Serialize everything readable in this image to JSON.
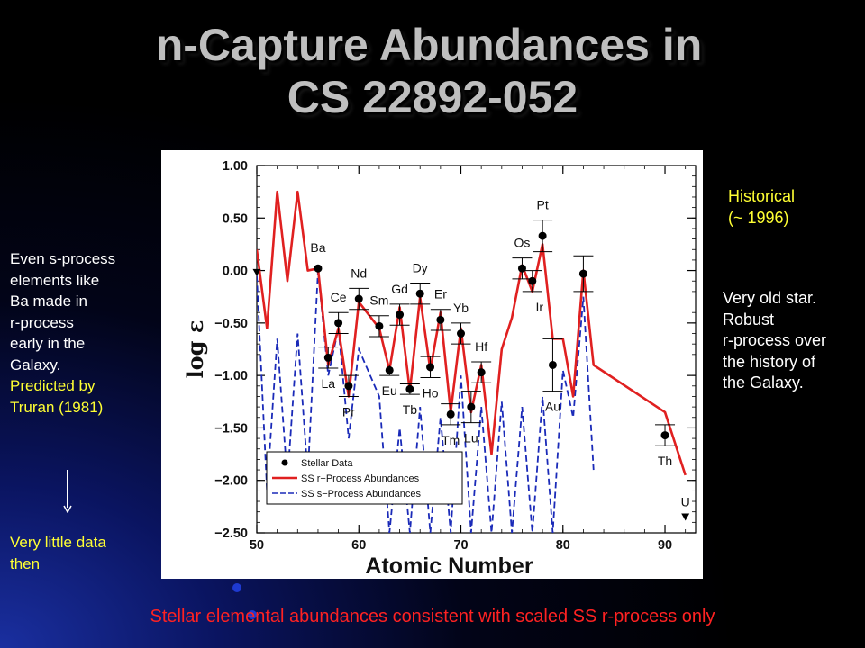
{
  "slide": {
    "title_line1": "n-Capture Abundances in",
    "title_line2": "CS 22892-052",
    "left_note": {
      "lines": [
        "Even s-process",
        "elements like",
        "Ba made in",
        "r-process",
        "early in the",
        "Galaxy."
      ],
      "predicted_lines": [
        "Predicted by",
        "Truran (1981)"
      ],
      "bottom_lines": [
        "Very little data",
        "then"
      ]
    },
    "right_note": {
      "historical_lines": [
        "Historical",
        "(~ 1996)"
      ],
      "lines": [
        "Very old star.",
        "Robust",
        "r-process over",
        "the history of",
        "the Galaxy."
      ]
    },
    "footer": "Stellar elemental abundances consistent with scaled SS r-process only"
  },
  "colors": {
    "r_process": "#e02020",
    "s_process": "#1a2ab8",
    "stellar": "#000000",
    "yellow_text": "#ffff33",
    "red_text": "#ff2222"
  },
  "chart_data": {
    "type": "line",
    "xlabel": "Atomic Number",
    "ylabel": "log ε",
    "xlim": [
      50,
      93
    ],
    "ylim": [
      -2.5,
      1.0
    ],
    "x_ticks": [
      50,
      60,
      70,
      80,
      90
    ],
    "y_ticks": [
      1.0,
      0.5,
      0.0,
      -0.5,
      -1.0,
      -1.5,
      -2.0,
      -2.5
    ],
    "x_tick_labels": [
      "50",
      "60",
      "70",
      "80",
      "90"
    ],
    "y_tick_labels": [
      "1.00",
      "0.50",
      "0.00",
      "−0.50",
      "−1.00",
      "−1.50",
      "−2.00",
      "−2.50"
    ],
    "legend": {
      "position": "bottom-left",
      "entries": [
        "Stellar Data",
        "SS r−Process Abundances",
        "SS s−Process Abundances"
      ]
    },
    "stellar_data": [
      {
        "z": 56,
        "label": "Ba",
        "y": 0.02,
        "err": 0
      },
      {
        "z": 57,
        "label": "La",
        "y": -0.83,
        "err": 0.1
      },
      {
        "z": 58,
        "label": "Ce",
        "y": -0.5,
        "err": 0.1
      },
      {
        "z": 59,
        "label": "Pr",
        "y": -1.1,
        "err": 0.1
      },
      {
        "z": 60,
        "label": "Nd",
        "y": -0.27,
        "err": 0.1
      },
      {
        "z": 62,
        "label": "Sm",
        "y": -0.53,
        "err": 0.1
      },
      {
        "z": 63,
        "label": "Eu",
        "y": -0.95,
        "err": 0.05
      },
      {
        "z": 64,
        "label": "Gd",
        "y": -0.42,
        "err": 0.1
      },
      {
        "z": 65,
        "label": "Tb",
        "y": -1.13,
        "err": 0.05
      },
      {
        "z": 66,
        "label": "Dy",
        "y": -0.22,
        "err": 0.1
      },
      {
        "z": 67,
        "label": "Ho",
        "y": -0.92,
        "err": 0.1
      },
      {
        "z": 68,
        "label": "Er",
        "y": -0.47,
        "err": 0.1
      },
      {
        "z": 69,
        "label": "Tm",
        "y": -1.37,
        "err": 0.1
      },
      {
        "z": 70,
        "label": "Yb",
        "y": -0.6,
        "err": 0.1
      },
      {
        "z": 71,
        "label": "Lu",
        "y": -1.3,
        "err": 0.15
      },
      {
        "z": 72,
        "label": "Hf",
        "y": -0.97,
        "err": 0.1
      },
      {
        "z": 76,
        "label": "Os",
        "y": 0.02,
        "err": 0.1
      },
      {
        "z": 77,
        "label": "Ir",
        "y": -0.1,
        "err": 0.1
      },
      {
        "z": 78,
        "label": "Pt",
        "y": 0.33,
        "err": 0.15
      },
      {
        "z": 79,
        "label": "Au",
        "y": -0.9,
        "err": 0.25
      },
      {
        "z": 82,
        "label": "",
        "y": -0.03,
        "err": 0.17
      },
      {
        "z": 90,
        "label": "Th",
        "y": -1.57,
        "err": 0.1
      }
    ],
    "upper_limits": [
      {
        "z": 92,
        "label": "U",
        "y": -2.35
      },
      {
        "z": 50,
        "label": "",
        "y": -0.02
      }
    ],
    "series": [
      {
        "name": "SS r−Process Abundances",
        "x": [
          50,
          51,
          52,
          53,
          54,
          55,
          56,
          57,
          58,
          59,
          60,
          62,
          63,
          64,
          65,
          66,
          67,
          68,
          69,
          70,
          71,
          72,
          73,
          74,
          75,
          76,
          77,
          78,
          79,
          80,
          81,
          82,
          83,
          90,
          92
        ],
        "y": [
          0.2,
          -0.55,
          0.75,
          -0.1,
          0.75,
          0.0,
          0.02,
          -0.9,
          -0.55,
          -1.2,
          -0.3,
          -0.55,
          -0.95,
          -0.35,
          -1.15,
          -0.25,
          -0.95,
          -0.4,
          -1.35,
          -0.55,
          -1.35,
          -0.9,
          -1.75,
          -0.75,
          -0.45,
          0.05,
          -0.2,
          0.25,
          -0.65,
          -0.65,
          -1.2,
          0.0,
          -0.9,
          -1.35,
          -1.95
        ]
      },
      {
        "name": "SS s−Process Abundances",
        "x": [
          50,
          51,
          52,
          53,
          54,
          55,
          56,
          57,
          58,
          59,
          60,
          62,
          63,
          64,
          65,
          66,
          67,
          68,
          69,
          70,
          71,
          72,
          73,
          74,
          75,
          76,
          77,
          78,
          79,
          80,
          81,
          82,
          83
        ],
        "y": [
          -0.05,
          -2.1,
          -0.65,
          -2.0,
          -0.6,
          -1.95,
          0.0,
          -1.0,
          -0.55,
          -1.6,
          -0.75,
          -1.2,
          -2.5,
          -1.5,
          -2.5,
          -1.3,
          -2.5,
          -1.4,
          -2.5,
          -1.0,
          -2.5,
          -1.3,
          -2.5,
          -1.25,
          -2.5,
          -1.3,
          -2.5,
          -1.2,
          -2.5,
          -0.95,
          -1.4,
          -0.25,
          -1.9
        ]
      }
    ]
  }
}
